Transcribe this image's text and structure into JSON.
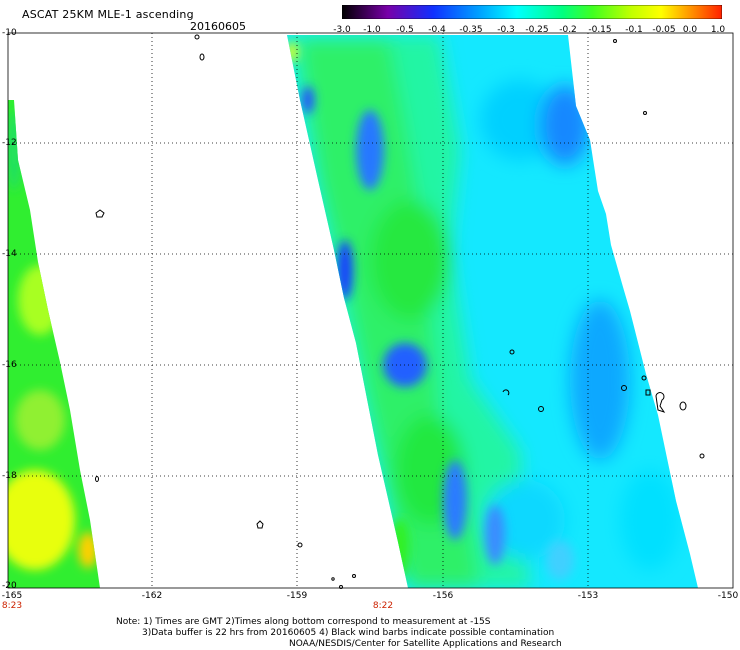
{
  "header": {
    "title": "ASCAT 25KM MLE-1 ascending",
    "date": "20160605"
  },
  "colorbar": {
    "labels": [
      "-3.0",
      "-1.0",
      "-0.5",
      "-0.4",
      "-0.35",
      "-0.3",
      "-0.25",
      "-0.2",
      "-0.15",
      "-0.1",
      "-0.05",
      "0.0",
      "1.0"
    ],
    "colors": [
      "#000000",
      "#7800a8",
      "#2050ff",
      "#00c8ff",
      "#00ffe0",
      "#00ff60",
      "#b0ff00",
      "#ffff00",
      "#ff9000",
      "#ff2000"
    ]
  },
  "map": {
    "lat_labels": [
      "-10",
      "-12",
      "-14",
      "-16",
      "-18",
      "-20"
    ],
    "lon_labels": [
      "-165",
      "-162",
      "-159",
      "-156",
      "-153",
      "-150"
    ],
    "time_labels": [
      "8:23",
      "8:22"
    ]
  },
  "notes": {
    "line1": "Note: 1) Times are GMT 2)Times along bottom correspond to measurement at -15S",
    "line2": "3)Data buffer is 22 hrs from 20160605 4) Black wind barbs indicate possible contamination",
    "line3": "NOAA/NESDIS/Center for Satellite Applications and Research"
  }
}
